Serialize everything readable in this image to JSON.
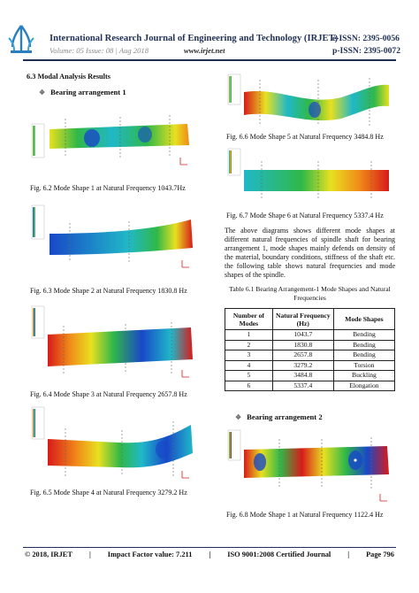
{
  "header": {
    "journal_title": "International Research Journal of Engineering and Technology (IRJET)",
    "volume_line": "Volume: 05 Issue: 08 | Aug 2018",
    "website": "www.irjet.net",
    "e_issn": "e-ISSN: 2395-0056",
    "p_issn": "p-ISSN: 2395-0072"
  },
  "section_title": "6.3 Modal Analysis Results",
  "arrangement1_heading": "Bearing arrangement 1",
  "arrangement2_heading": "Bearing  arrangement 2",
  "captions": {
    "fig62": "Fig. 6.2 Mode Shape 1 at Natural Frequency 1043.7Hz",
    "fig63": "Fig. 6.3 Mode Shape 2 at Natural Frequency 1830.8 Hz",
    "fig64": "Fig. 6.4 Mode Shape 3 at Natural Frequency 2657.8 Hz",
    "fig65": "Fig. 6.5 Mode Shape 4 at Natural Frequency 3279.2 Hz",
    "fig66": "Fig. 6.6 Mode Shape 5 at Natural Frequency 3484.8 Hz",
    "fig67": "Fig. 6.7 Mode Shape 6 at Natural Frequency 5337.4 Hz",
    "fig68": "Fig. 6.8 Mode Shape 1 at Natural Frequency 1122.4 Hz"
  },
  "paragraph": "The above diagrams shows different mode shapes at different natural frequencies of spindle shaft for bearing arrangement 1, mode shapes mainly defends on density of the material, boundary conditions, stiffness of the shaft etc. the following table shows natural frequencies and mode shapes of the spindle.",
  "table": {
    "caption": "Table 6.1 Bearing Arrangement-1 Mode Shapes and Natural Frequencies",
    "headers": [
      "Number of Modes",
      "Natural Frequency (Hz)",
      "Mode Shapes"
    ],
    "rows": [
      [
        "1",
        "1043.7",
        "Bending"
      ],
      [
        "2",
        "1830.8",
        "Bending"
      ],
      [
        "3",
        "2657.8",
        "Bending"
      ],
      [
        "4",
        "3279.2",
        "Torsion"
      ],
      [
        "5",
        "3484.8",
        "Buckling"
      ],
      [
        "6",
        "5337.4",
        "Elongation"
      ]
    ]
  },
  "footer": {
    "copyright": "© 2018, IRJET",
    "impact": "Impact Factor value: 7.211",
    "iso": "ISO 9001:2008 Certified Journal",
    "page": "Page 796"
  },
  "colors": {
    "header_navy": "#1f2f55",
    "fea_red": "#d81a1a",
    "fea_orange": "#f08a18",
    "fea_yellow": "#e8e020",
    "fea_green": "#30b848",
    "fea_cyan": "#20b8c8",
    "fea_blue": "#1848c8"
  }
}
